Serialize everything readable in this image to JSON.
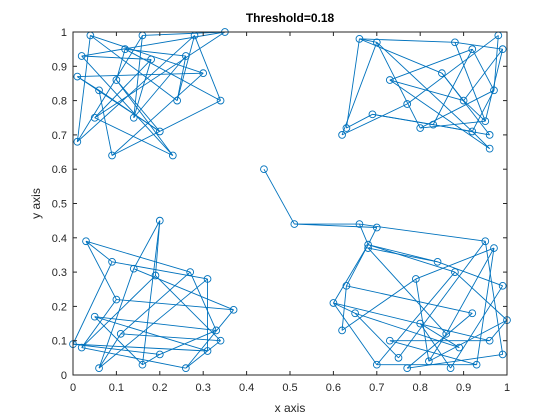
{
  "chart_data": {
    "type": "scatter",
    "title": "Threshold=0.18",
    "xlabel": "x axis",
    "ylabel": "y axis",
    "xlim": [
      0,
      1
    ],
    "ylim": [
      0,
      1
    ],
    "xticks": [
      "0",
      "0.1",
      "0.2",
      "0.3",
      "0.4",
      "0.5",
      "0.6",
      "0.7",
      "0.8",
      "0.9",
      "1"
    ],
    "yticks": [
      "0",
      "0.1",
      "0.2",
      "0.3",
      "0.4",
      "0.5",
      "0.6",
      "0.7",
      "0.8",
      "0.9",
      "1"
    ],
    "grid": false,
    "marker": "circle",
    "color": "#0072BD",
    "points": [
      [
        0.44,
        0.6
      ],
      [
        0.51,
        0.44
      ],
      [
        0.66,
        0.44
      ],
      [
        0.7,
        0.43
      ],
      [
        0.68,
        0.38
      ],
      [
        0.63,
        0.72
      ],
      [
        0.62,
        0.7
      ],
      [
        0.66,
        0.98
      ],
      [
        0.7,
        0.97
      ],
      [
        0.69,
        0.76
      ],
      [
        0.73,
        0.86
      ],
      [
        0.77,
        0.79
      ],
      [
        0.8,
        0.72
      ],
      [
        0.83,
        0.73
      ],
      [
        0.88,
        0.97
      ],
      [
        0.92,
        0.95
      ],
      [
        0.95,
        0.74
      ],
      [
        0.96,
        0.7
      ],
      [
        0.96,
        0.66
      ],
      [
        0.98,
        0.99
      ],
      [
        0.99,
        0.95
      ],
      [
        0.97,
        0.83
      ],
      [
        0.9,
        0.8
      ],
      [
        0.85,
        0.88
      ],
      [
        0.92,
        0.71
      ],
      [
        0.01,
        0.68
      ],
      [
        0.02,
        0.93
      ],
      [
        0.04,
        0.99
      ],
      [
        0.09,
        0.64
      ],
      [
        0.12,
        0.95
      ],
      [
        0.16,
        0.99
      ],
      [
        0.18,
        0.92
      ],
      [
        0.2,
        0.71
      ],
      [
        0.23,
        0.64
      ],
      [
        0.24,
        0.8
      ],
      [
        0.26,
        0.93
      ],
      [
        0.3,
        0.88
      ],
      [
        0.34,
        0.8
      ],
      [
        0.35,
        1.0
      ],
      [
        0.06,
        0.83
      ],
      [
        0.1,
        0.86
      ],
      [
        0.14,
        0.75
      ],
      [
        0.01,
        0.87
      ],
      [
        0.28,
        0.99
      ],
      [
        0.05,
        0.75
      ],
      [
        0.03,
        0.39
      ],
      [
        0.2,
        0.45
      ],
      [
        0.09,
        0.33
      ],
      [
        0.14,
        0.31
      ],
      [
        0.27,
        0.3
      ],
      [
        0.19,
        0.29
      ],
      [
        0.31,
        0.28
      ],
      [
        0.37,
        0.19
      ],
      [
        0.33,
        0.13
      ],
      [
        0.34,
        0.1
      ],
      [
        0.31,
        0.07
      ],
      [
        0.26,
        0.02
      ],
      [
        0.2,
        0.06
      ],
      [
        0.11,
        0.12
      ],
      [
        0.05,
        0.17
      ],
      [
        0.02,
        0.08
      ],
      [
        0.0,
        0.09
      ],
      [
        0.06,
        0.02
      ],
      [
        0.16,
        0.03
      ],
      [
        0.1,
        0.22
      ],
      [
        0.6,
        0.21
      ],
      [
        0.63,
        0.26
      ],
      [
        0.65,
        0.18
      ],
      [
        0.62,
        0.13
      ],
      [
        0.68,
        0.37
      ],
      [
        0.7,
        0.03
      ],
      [
        0.75,
        0.05
      ],
      [
        0.79,
        0.28
      ],
      [
        0.84,
        0.33
      ],
      [
        0.88,
        0.3
      ],
      [
        0.95,
        0.39
      ],
      [
        0.97,
        0.37
      ],
      [
        0.99,
        0.26
      ],
      [
        1.0,
        0.16
      ],
      [
        0.99,
        0.06
      ],
      [
        0.93,
        0.03
      ],
      [
        0.87,
        0.02
      ],
      [
        0.82,
        0.04
      ],
      [
        0.77,
        0.02
      ],
      [
        0.73,
        0.1
      ],
      [
        0.8,
        0.15
      ],
      [
        0.86,
        0.12
      ],
      [
        0.92,
        0.18
      ],
      [
        0.96,
        0.1
      ],
      [
        0.89,
        0.08
      ]
    ],
    "edges": [
      [
        0,
        1
      ],
      [
        1,
        2
      ],
      [
        1,
        3
      ],
      [
        2,
        4
      ],
      [
        3,
        4
      ],
      [
        4,
        65
      ],
      [
        4,
        66
      ],
      [
        4,
        74
      ],
      [
        4,
        73
      ],
      [
        2,
        75
      ],
      [
        5,
        7
      ],
      [
        5,
        9
      ],
      [
        6,
        11
      ],
      [
        6,
        8
      ],
      [
        7,
        8
      ],
      [
        7,
        14
      ],
      [
        8,
        12
      ],
      [
        9,
        13
      ],
      [
        10,
        15
      ],
      [
        10,
        18
      ],
      [
        11,
        19
      ],
      [
        12,
        16
      ],
      [
        13,
        17
      ],
      [
        14,
        20
      ],
      [
        15,
        21
      ],
      [
        16,
        22
      ],
      [
        17,
        23
      ],
      [
        18,
        24
      ],
      [
        19,
        21
      ],
      [
        20,
        22
      ],
      [
        21,
        24
      ],
      [
        22,
        23
      ],
      [
        23,
        7
      ],
      [
        24,
        9
      ],
      [
        12,
        21
      ],
      [
        16,
        20
      ],
      [
        8,
        24
      ],
      [
        13,
        15
      ],
      [
        14,
        16
      ],
      [
        10,
        22
      ],
      [
        25,
        27
      ],
      [
        25,
        30
      ],
      [
        26,
        33
      ],
      [
        27,
        34
      ],
      [
        28,
        36
      ],
      [
        29,
        37
      ],
      [
        30,
        38
      ],
      [
        31,
        26
      ],
      [
        32,
        39
      ],
      [
        33,
        40
      ],
      [
        34,
        35
      ],
      [
        35,
        41
      ],
      [
        36,
        42
      ],
      [
        37,
        43
      ],
      [
        38,
        44
      ],
      [
        39,
        28
      ],
      [
        40,
        29
      ],
      [
        41,
        31
      ],
      [
        42,
        32
      ],
      [
        43,
        25
      ],
      [
        44,
        33
      ],
      [
        26,
        38
      ],
      [
        27,
        36
      ],
      [
        28,
        37
      ],
      [
        29,
        35
      ],
      [
        30,
        41
      ],
      [
        31,
        44
      ],
      [
        32,
        40
      ],
      [
        34,
        43
      ],
      [
        39,
        42
      ],
      [
        45,
        47
      ],
      [
        45,
        49
      ],
      [
        46,
        48
      ],
      [
        46,
        50
      ],
      [
        47,
        51
      ],
      [
        48,
        52
      ],
      [
        49,
        53
      ],
      [
        50,
        54
      ],
      [
        51,
        55
      ],
      [
        52,
        56
      ],
      [
        53,
        57
      ],
      [
        54,
        58
      ],
      [
        55,
        59
      ],
      [
        56,
        60
      ],
      [
        57,
        61
      ],
      [
        58,
        62
      ],
      [
        59,
        63
      ],
      [
        60,
        64
      ],
      [
        61,
        47
      ],
      [
        62,
        48
      ],
      [
        63,
        46
      ],
      [
        64,
        45
      ],
      [
        49,
        58
      ],
      [
        50,
        60
      ],
      [
        51,
        62
      ],
      [
        53,
        59
      ],
      [
        52,
        64
      ],
      [
        55,
        61
      ],
      [
        57,
        63
      ],
      [
        54,
        56
      ],
      [
        65,
        67
      ],
      [
        65,
        70
      ],
      [
        66,
        68
      ],
      [
        67,
        71
      ],
      [
        68,
        72
      ],
      [
        69,
        73
      ],
      [
        70,
        74
      ],
      [
        71,
        75
      ],
      [
        72,
        76
      ],
      [
        73,
        77
      ],
      [
        74,
        78
      ],
      [
        75,
        79
      ],
      [
        76,
        80
      ],
      [
        77,
        81
      ],
      [
        78,
        82
      ],
      [
        79,
        83
      ],
      [
        80,
        84
      ],
      [
        81,
        85
      ],
      [
        82,
        86
      ],
      [
        83,
        87
      ],
      [
        84,
        88
      ],
      [
        85,
        89
      ],
      [
        86,
        69
      ],
      [
        87,
        66
      ],
      [
        88,
        65
      ],
      [
        89,
        67
      ],
      [
        70,
        80
      ],
      [
        72,
        82
      ],
      [
        76,
        86
      ],
      [
        78,
        88
      ]
    ],
    "annotations": []
  }
}
